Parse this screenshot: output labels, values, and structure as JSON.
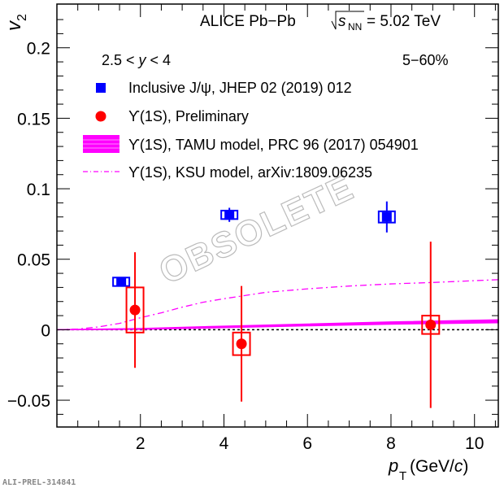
{
  "chart_data": {
    "type": "scatter",
    "title": "ALICE   Pb−Pb",
    "energy": {
      "sqrt": "s",
      "sub": "NN",
      "value": "= 5.02 TeV"
    },
    "rapidity": {
      "pre": "2.5 < ",
      "var": "y",
      "post": " < 4"
    },
    "centrality": "5−60%",
    "xlabel": {
      "var": "p",
      "sub": "T",
      "unit": " (GeV/",
      "unit_var": "c",
      "close": ")"
    },
    "ylabel": {
      "var": "v",
      "sub": "2"
    },
    "xlim": [
      0,
      10.57
    ],
    "ylim": [
      -0.069,
      0.231
    ],
    "xticks": [
      "2",
      "4",
      "6",
      "8",
      "10"
    ],
    "xtick_values": [
      2,
      4,
      6,
      8,
      10
    ],
    "yticks": [
      "−0.05",
      "0",
      "0.05",
      "0.1",
      "0.15",
      "0.2"
    ],
    "ytick_values": [
      -0.05,
      0,
      0.05,
      0.1,
      0.15,
      0.2
    ],
    "watermark": "OBSOLETE",
    "footer": "ALI-PREL-314841",
    "series": [
      {
        "name": "Inclusive J/ψ, JHEP 02 (2019) 012",
        "color": "#0000ff",
        "marker": "square",
        "x": [
          1.54,
          4.13,
          7.9
        ],
        "y": [
          0.034,
          0.0815,
          0.08
        ],
        "stat": [
          0.003,
          0.005,
          0.011
        ],
        "sys": [
          0.003,
          0.003,
          0.004
        ]
      },
      {
        "name": "ϒ(1S), Preliminary",
        "color": "#ff0000",
        "marker": "circle",
        "x": [
          1.87,
          4.42,
          8.95
        ],
        "y": [
          0.014,
          -0.01,
          0.0035
        ],
        "stat": [
          0.041,
          0.041,
          0.059
        ],
        "sys": [
          0.016,
          0.008,
          0.0065
        ]
      },
      {
        "name": "ϒ(1S), TAMU model, PRC 96 (2017) 054901",
        "color": "#ff00ff",
        "marker": "band",
        "x": [
          0,
          2,
          4,
          6,
          8,
          10.57
        ],
        "low": [
          0,
          0.0003,
          0.0015,
          0.0028,
          0.004,
          0.005
        ],
        "high": [
          0,
          0.0008,
          0.0025,
          0.004,
          0.0055,
          0.007
        ]
      },
      {
        "name": "ϒ(1S), KSU model, arXiv:1809.06235",
        "color": "#ff00ff",
        "marker": "dashdot",
        "x": [
          0,
          0.5,
          1,
          1.5,
          2,
          2.5,
          3,
          3.5,
          4,
          5,
          6,
          7,
          8,
          9,
          10,
          10.57
        ],
        "y": [
          0,
          0.0005,
          0.002,
          0.0045,
          0.0085,
          0.012,
          0.016,
          0.0195,
          0.022,
          0.0265,
          0.029,
          0.031,
          0.0325,
          0.0335,
          0.0348,
          0.0355
        ]
      }
    ],
    "grid": false,
    "legend_placement": "top-left"
  }
}
